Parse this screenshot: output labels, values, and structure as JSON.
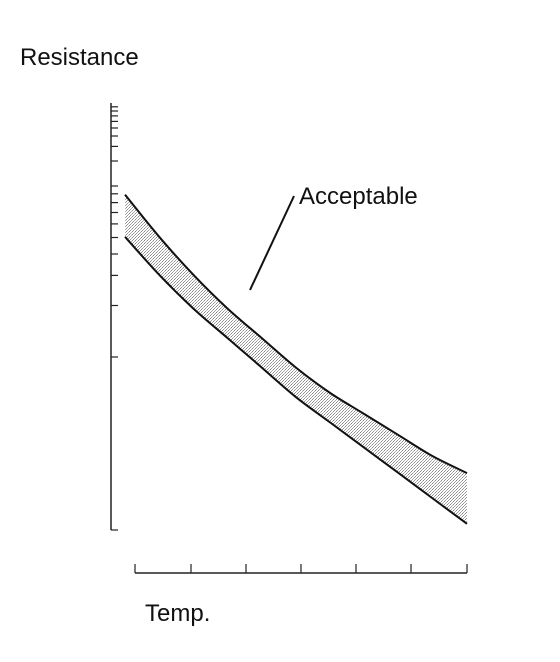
{
  "chart_data": {
    "type": "area",
    "title": "",
    "xlabel": "Temp.",
    "ylabel": "Resistance",
    "y_scale": "log",
    "grid": false,
    "legend": "none",
    "annotation": "Acceptable",
    "x": [
      0.0,
      0.1,
      0.2,
      0.3,
      0.4,
      0.5,
      0.6,
      0.7,
      0.8,
      0.9,
      1.0
    ],
    "series": [
      {
        "values": [
          0.79,
          0.69,
          0.6,
          0.52,
          0.45,
          0.38,
          0.32,
          0.27,
          0.22,
          0.17,
          0.13
        ]
      },
      {
        "values": [
          0.69,
          0.6,
          0.52,
          0.45,
          0.38,
          0.31,
          0.25,
          0.19,
          0.13,
          0.07,
          0.01
        ]
      }
    ],
    "colors": {
      "band": "#c8c8c8",
      "line": "#111111"
    }
  }
}
